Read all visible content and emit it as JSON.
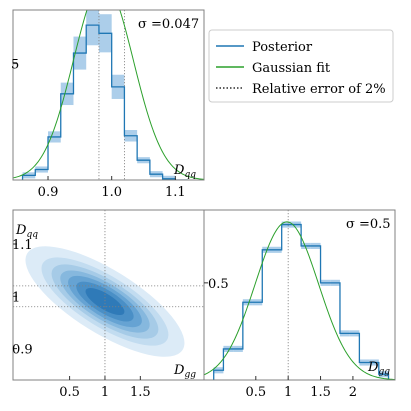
{
  "chart_data": [
    {
      "type": "bar",
      "panel": "marginal D_qq",
      "annotation": "σ =0.047",
      "axis_label": "D_qq",
      "xlim": [
        0.845,
        1.145
      ],
      "ylim": [
        0,
        7.3
      ],
      "xticks": [
        0.9,
        1.0,
        1.1
      ],
      "xtick_labels": [
        "0.9",
        "1.0",
        "1.1"
      ],
      "yticks": [
        5
      ],
      "ytick_labels": [
        "5"
      ],
      "bin_edges": [
        0.86,
        0.88,
        0.9,
        0.92,
        0.94,
        0.96,
        0.98,
        1.0,
        1.02,
        1.04,
        1.06,
        1.08,
        1.1,
        1.12
      ],
      "posterior_density": [
        0.2,
        0.45,
        1.85,
        3.7,
        5.45,
        6.65,
        6.3,
        4.0,
        1.9,
        0.85,
        0.25,
        0.05,
        0.0
      ],
      "band_half_width": 0.13,
      "gaussian_fit": {
        "mean": 0.987,
        "sigma": 0.047
      },
      "reference_lines": [
        0.98,
        1.02
      ]
    },
    {
      "type": "contour",
      "panel": "joint D_gg vs D_qq",
      "xlabel": "D_gg",
      "ylabel": "D_qq",
      "xlim": [
        -0.3,
        2.4
      ],
      "ylim": [
        0.84,
        1.165
      ],
      "xticks": [
        0.5,
        1.0,
        1.5
      ],
      "xtick_labels": [
        "0.5",
        "1",
        "1.5"
      ],
      "yticks": [
        0.9,
        1.0,
        1.1
      ],
      "ytick_labels": [
        "0.9",
        "1",
        "1.1"
      ],
      "center": [
        1.0,
        0.99
      ],
      "sigma_x": 0.5,
      "sigma_y": 0.047,
      "correlation": -0.75,
      "levels": [
        0.08,
        0.2,
        0.32,
        0.45,
        0.58,
        0.72,
        0.86
      ],
      "reference_lines_x": [
        1.0
      ],
      "reference_lines_y": [
        0.98,
        1.02
      ]
    },
    {
      "type": "bar",
      "panel": "marginal D_gg",
      "annotation": "σ =0.5",
      "axis_label": "D_gg",
      "xlim": [
        -0.3,
        2.65
      ],
      "ylim": [
        0,
        0.875
      ],
      "xticks": [
        0.5,
        1.0,
        1.5,
        2.0
      ],
      "xtick_labels": [
        "0.5",
        "1",
        "1.5",
        "2"
      ],
      "yticks": [
        0.5
      ],
      "ytick_labels": [
        "0.5"
      ],
      "bin_edges": [
        -0.15,
        0.0,
        0.15,
        0.3,
        0.45,
        0.6,
        0.75,
        0.9,
        1.05,
        1.2,
        1.35,
        1.5,
        1.65,
        1.8,
        1.95,
        2.1,
        2.25,
        2.4,
        2.55
      ],
      "posterior_density": [
        0.05,
        0.16,
        0.16,
        0.4,
        0.4,
        0.67,
        0.67,
        0.8,
        0.8,
        0.69,
        0.69,
        0.5,
        0.5,
        0.24,
        0.24,
        0.09,
        0.09,
        0.03
      ],
      "band_half_width": 0.017,
      "gaussian_fit": {
        "mean": 0.98,
        "sigma": 0.49
      },
      "reference_lines": [
        1.0
      ]
    }
  ],
  "legend": {
    "placement": "top-right",
    "items": [
      {
        "label": "Posterior",
        "style": "line",
        "color": "#1f77b4"
      },
      {
        "label": "Gaussian fit",
        "style": "line",
        "color": "#2ca02c"
      },
      {
        "label": "Relative error of 2%",
        "style": "dotted",
        "color": "#000000"
      }
    ]
  },
  "colors": {
    "posterior": "#1f77b4",
    "band": "#9ec6e6",
    "fit": "#2ca02c",
    "frame": "#808080",
    "ref": "#7f7f7f"
  },
  "labels": {
    "qq_sigma": "σ =0.047",
    "gg_sigma": "σ =0.5",
    "qq_axis_main": "D",
    "qq_axis_sub": "qq",
    "gg_axis_main": "D",
    "gg_axis_sub": "gg"
  }
}
